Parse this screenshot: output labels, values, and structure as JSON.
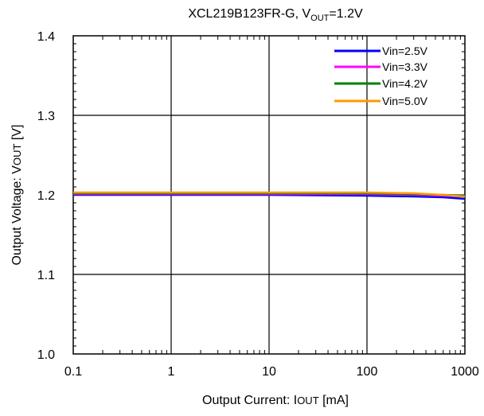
{
  "chart_data": {
    "type": "line",
    "title": "XCL219B123FR-G, V",
    "title_sub": "OUT",
    "title_tail": "=1.2V",
    "xlabel": "Output  Current:  I",
    "xlabel_sub": "OUT",
    "xlabel_tail": " [mA]",
    "ylabel": "Output  Voltage:  V",
    "ylabel_sub": "OUT",
    "ylabel_tail": " [V]",
    "x_scale": "log",
    "xlim": [
      0.1,
      1000
    ],
    "ylim": [
      1.0,
      1.4
    ],
    "x_ticks": [
      0.1,
      1,
      10,
      100,
      1000
    ],
    "x_tick_labels": [
      "0.1",
      "1",
      "10",
      "100",
      "1000"
    ],
    "y_ticks": [
      1.0,
      1.1,
      1.2,
      1.3,
      1.4
    ],
    "y_tick_labels": [
      "1.0",
      "1.1",
      "1.2",
      "1.3",
      "1.4"
    ],
    "grid": true,
    "legend_position": "top-right",
    "series": [
      {
        "name": "Vin=2.5V",
        "color": "#0000ff",
        "x": [
          0.1,
          1,
          10,
          100,
          300,
          600,
          1000
        ],
        "y": [
          1.2,
          1.2,
          1.2,
          1.199,
          1.198,
          1.197,
          1.195
        ]
      },
      {
        "name": "Vin=3.3V",
        "color": "#ff00ff",
        "x": [
          0.1,
          1,
          10,
          100,
          300,
          600,
          1000
        ],
        "y": [
          1.201,
          1.201,
          1.201,
          1.201,
          1.2,
          1.199,
          1.198
        ]
      },
      {
        "name": "Vin=4.2V",
        "color": "#008000",
        "x": [
          0.1,
          1,
          10,
          100,
          300,
          600,
          1000
        ],
        "y": [
          1.202,
          1.202,
          1.202,
          1.202,
          1.201,
          1.2,
          1.199
        ]
      },
      {
        "name": "Vin=5.0V",
        "color": "#ff9900",
        "x": [
          0.1,
          1,
          10,
          100,
          300,
          600,
          1000
        ],
        "y": [
          1.203,
          1.203,
          1.203,
          1.203,
          1.202,
          1.2,
          1.198
        ]
      }
    ]
  }
}
